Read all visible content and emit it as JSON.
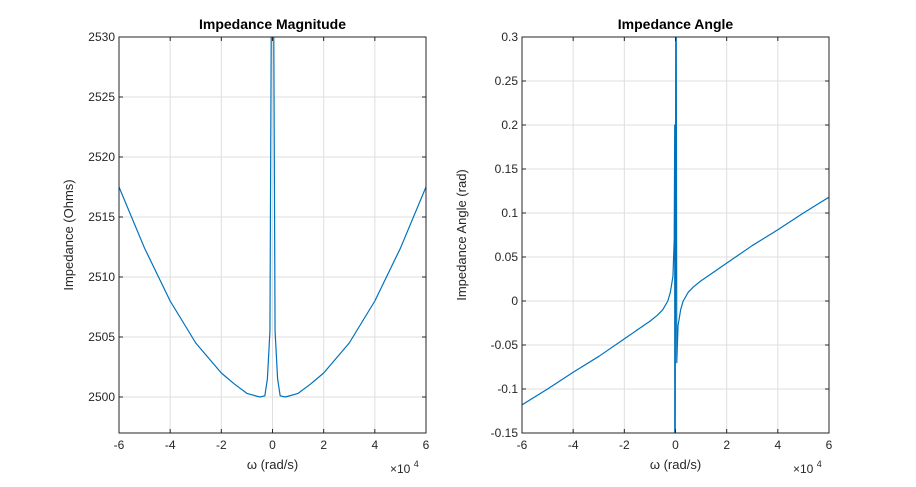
{
  "chart_data": [
    {
      "type": "line",
      "title": "Impedance Magnitude",
      "xlabel": "ω (rad/s)",
      "ylabel": "Impedance (Ohms)",
      "x_exponent_label": "×10",
      "x_exponent": "4",
      "xlim": [
        -6,
        6
      ],
      "ylim": [
        2497,
        2530
      ],
      "xticks": [
        -6,
        -4,
        -2,
        0,
        2,
        4,
        6
      ],
      "xtick_labels": [
        "-6",
        "-4",
        "-2",
        "0",
        "2",
        "4",
        "6"
      ],
      "yticks": [
        2500,
        2505,
        2510,
        2515,
        2520,
        2525,
        2530
      ],
      "ytick_labels": [
        "2500",
        "2505",
        "2510",
        "2515",
        "2520",
        "2525",
        "2530"
      ],
      "grid": true,
      "color": "#0072BD",
      "series": [
        {
          "x": [
            -6,
            -5,
            -4,
            -3,
            -2,
            -1.5,
            -1,
            -0.5,
            -0.3,
            -0.2,
            -0.1,
            -0.05,
            0,
            0.05,
            0.1,
            0.2,
            0.3,
            0.5,
            1,
            1.5,
            2,
            3,
            4,
            5,
            6
          ],
          "y": [
            2517.5,
            2512.4,
            2508.0,
            2504.5,
            2502.0,
            2501.1,
            2500.3,
            2500.0,
            2500.1,
            2501.5,
            2505.5,
            2530,
            2530,
            2530,
            2505.5,
            2501.5,
            2500.1,
            2500.0,
            2500.3,
            2501.1,
            2502.0,
            2504.5,
            2508.0,
            2512.4,
            2517.5
          ]
        }
      ]
    },
    {
      "type": "line",
      "title": "Impedance Angle",
      "xlabel": "ω (rad/s)",
      "ylabel": "Impedance Angle (rad)",
      "x_exponent_label": "×10",
      "x_exponent": "4",
      "xlim": [
        -6,
        6
      ],
      "ylim": [
        -0.15,
        0.3
      ],
      "xticks": [
        -6,
        -4,
        -2,
        0,
        2,
        4,
        6
      ],
      "xtick_labels": [
        "-6",
        "-4",
        "-2",
        "0",
        "2",
        "4",
        "6"
      ],
      "yticks": [
        -0.15,
        -0.1,
        -0.05,
        0,
        0.05,
        0.1,
        0.15,
        0.2,
        0.25,
        0.3
      ],
      "ytick_labels": [
        "-0.15",
        "-0.1",
        "-0.05",
        "0",
        "0.05",
        "0.1",
        "0.15",
        "0.2",
        "0.25",
        "0.3"
      ],
      "grid": true,
      "color": "#0072BD",
      "series": [
        {
          "x": [
            -6,
            -5,
            -4,
            -3,
            -2,
            -1.5,
            -1,
            -0.7,
            -0.5,
            -0.3,
            -0.2,
            -0.1,
            -0.05,
            -0.03,
            -0.03,
            -0.01,
            0.01,
            0.03,
            0.05,
            0.1,
            0.2,
            0.3,
            0.5,
            0.7,
            1,
            1.5,
            2,
            3,
            4,
            5,
            6
          ],
          "y": [
            -0.118,
            -0.1,
            -0.081,
            -0.063,
            -0.043,
            -0.033,
            -0.023,
            -0.016,
            -0.01,
            0.0,
            0.01,
            0.028,
            0.07,
            0.2,
            -0.15,
            -0.15,
            0.3,
            0.3,
            -0.07,
            -0.028,
            -0.01,
            0.0,
            0.01,
            0.016,
            0.023,
            0.033,
            0.043,
            0.063,
            0.081,
            0.1,
            0.118
          ]
        }
      ]
    }
  ]
}
